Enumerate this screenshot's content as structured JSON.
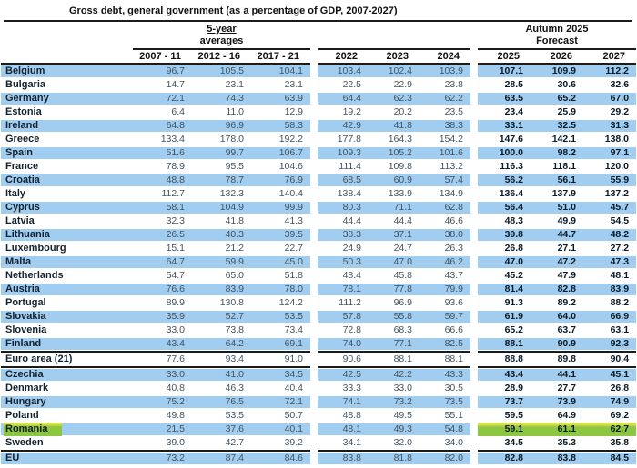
{
  "title": "Gross debt, general government (as a percentage of GDP, 2007-2027)",
  "colors": {
    "row_shade": "#a0cdf0",
    "highlight_green": "#8dc63f",
    "highlight_green_top": "#dde24b",
    "rule_line": "#1b1b1b"
  },
  "table": {
    "group_headers": {
      "five_year_line1": "5-year",
      "five_year_line2": "averages",
      "forecast_line1": "Autumn 2025",
      "forecast_line2": "Forecast"
    },
    "years": [
      "2007 - 11",
      "2012 - 16",
      "2017 - 21",
      "2022",
      "2023",
      "2024",
      "2025",
      "2026",
      "2027"
    ],
    "rows": [
      {
        "name": "Belgium",
        "values": [
          "96.7",
          "105.5",
          "104.1",
          "103.4",
          "102.4",
          "103.9",
          "107.1",
          "109.9",
          "112.2"
        ]
      },
      {
        "name": "Bulgaria",
        "values": [
          "14.7",
          "23.1",
          "23.1",
          "22.5",
          "22.9",
          "23.8",
          "28.5",
          "30.6",
          "32.6"
        ]
      },
      {
        "name": "Germany",
        "values": [
          "72.1",
          "74.3",
          "63.9",
          "64.4",
          "62.3",
          "62.2",
          "63.5",
          "65.2",
          "67.0"
        ]
      },
      {
        "name": "Estonia",
        "values": [
          "6.4",
          "11.0",
          "12.9",
          "19.2",
          "20.2",
          "23.5",
          "23.4",
          "25.9",
          "29.2"
        ]
      },
      {
        "name": "Ireland",
        "values": [
          "64.8",
          "96.9",
          "58.3",
          "42.9",
          "41.8",
          "38.3",
          "33.1",
          "32.5",
          "31.3"
        ]
      },
      {
        "name": "Greece",
        "values": [
          "133.4",
          "178.0",
          "192.2",
          "177.8",
          "164.3",
          "154.2",
          "147.6",
          "142.1",
          "138.0"
        ]
      },
      {
        "name": "Spain",
        "values": [
          "51.6",
          "99.7",
          "106.7",
          "109.3",
          "105.2",
          "101.6",
          "100.0",
          "98.2",
          "97.1"
        ]
      },
      {
        "name": "France",
        "values": [
          "78.9",
          "95.5",
          "104.6",
          "111.4",
          "109.8",
          "113.2",
          "116.3",
          "118.1",
          "120.0"
        ]
      },
      {
        "name": "Croatia",
        "values": [
          "48.8",
          "78.7",
          "76.9",
          "68.5",
          "60.9",
          "57.4",
          "56.2",
          "56.1",
          "55.9"
        ]
      },
      {
        "name": "Italy",
        "values": [
          "112.7",
          "132.3",
          "140.4",
          "138.4",
          "133.9",
          "134.9",
          "136.4",
          "137.9",
          "137.2"
        ]
      },
      {
        "name": "Cyprus",
        "values": [
          "58.1",
          "104.9",
          "99.9",
          "80.3",
          "71.1",
          "62.8",
          "56.4",
          "51.0",
          "45.7"
        ]
      },
      {
        "name": "Latvia",
        "values": [
          "32.3",
          "41.8",
          "41.3",
          "44.4",
          "44.4",
          "46.6",
          "48.3",
          "49.9",
          "54.5"
        ]
      },
      {
        "name": "Lithuania",
        "values": [
          "26.5",
          "40.3",
          "39.5",
          "38.3",
          "37.1",
          "38.0",
          "39.8",
          "44.7",
          "48.2"
        ]
      },
      {
        "name": "Luxembourg",
        "values": [
          "15.1",
          "21.2",
          "22.7",
          "24.9",
          "24.7",
          "26.3",
          "26.8",
          "27.1",
          "27.2"
        ]
      },
      {
        "name": "Malta",
        "values": [
          "64.7",
          "59.9",
          "45.0",
          "50.3",
          "47.0",
          "46.2",
          "47.0",
          "47.2",
          "47.3"
        ]
      },
      {
        "name": "Netherlands",
        "values": [
          "54.7",
          "65.0",
          "51.8",
          "48.4",
          "45.8",
          "43.7",
          "45.2",
          "47.9",
          "48.1"
        ]
      },
      {
        "name": "Austria",
        "values": [
          "76.6",
          "83.9",
          "78.0",
          "78.1",
          "77.8",
          "79.9",
          "81.4",
          "82.8",
          "83.9"
        ]
      },
      {
        "name": "Portugal",
        "values": [
          "89.9",
          "130.8",
          "124.2",
          "111.2",
          "96.9",
          "93.6",
          "91.3",
          "89.2",
          "88.2"
        ]
      },
      {
        "name": "Slovakia",
        "values": [
          "35.9",
          "52.7",
          "53.5",
          "57.8",
          "55.8",
          "59.7",
          "61.9",
          "64.0",
          "66.9"
        ]
      },
      {
        "name": "Slovenia",
        "values": [
          "33.0",
          "73.8",
          "73.4",
          "72.8",
          "68.3",
          "66.6",
          "65.2",
          "63.7",
          "63.1"
        ]
      },
      {
        "name": "Finland",
        "values": [
          "43.4",
          "64.2",
          "69.1",
          "74.0",
          "77.1",
          "82.5",
          "88.1",
          "90.9",
          "92.3"
        ]
      },
      {
        "name": "Euro area (21)",
        "values": [
          "77.6",
          "93.4",
          "91.0",
          "90.6",
          "88.1",
          "88.1",
          "88.8",
          "89.8",
          "90.4"
        ],
        "rule_above": true,
        "rule_below": true
      },
      {
        "name": "Czechia",
        "values": [
          "33.0",
          "41.0",
          "34.5",
          "42.5",
          "42.2",
          "43.3",
          "43.4",
          "44.1",
          "45.1"
        ]
      },
      {
        "name": "Denmark",
        "values": [
          "40.8",
          "46.3",
          "40.4",
          "33.3",
          "33.0",
          "30.5",
          "28.9",
          "27.7",
          "26.8"
        ]
      },
      {
        "name": "Hungary",
        "values": [
          "75.2",
          "76.5",
          "72.1",
          "74.1",
          "73.2",
          "73.5",
          "73.7",
          "73.9",
          "74.9"
        ]
      },
      {
        "name": "Poland",
        "values": [
          "49.8",
          "53.5",
          "50.7",
          "48.8",
          "49.5",
          "55.1",
          "59.5",
          "64.9",
          "69.2"
        ]
      },
      {
        "name": "Romania",
        "values": [
          "21.5",
          "37.6",
          "40.1",
          "48.1",
          "49.3",
          "54.8",
          "59.1",
          "61.1",
          "62.7"
        ],
        "highlight": true
      },
      {
        "name": "Sweden",
        "values": [
          "39.0",
          "42.7",
          "39.2",
          "34.1",
          "32.0",
          "34.0",
          "34.5",
          "35.3",
          "35.8"
        ]
      },
      {
        "name": "EU",
        "values": [
          "73.2",
          "87.4",
          "84.6",
          "83.8",
          "81.8",
          "82.0",
          "82.8",
          "83.8",
          "84.5"
        ],
        "rule_above": true
      }
    ]
  }
}
